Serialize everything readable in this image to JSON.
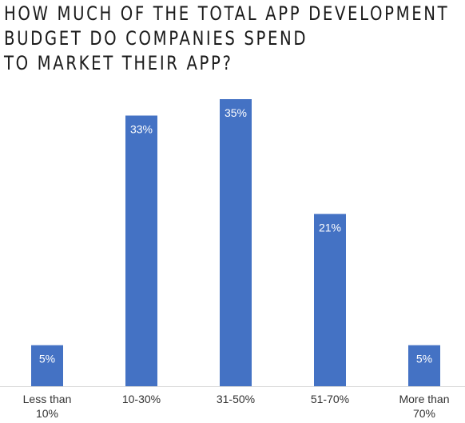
{
  "title_lines": [
    "HOW MUCH OF THE TOTAL APP DEVELOPMENT",
    "BUDGET DO COMPANIES SPEND",
    "TO MARKET THEIR APP?"
  ],
  "colors": {
    "bar": "#4472C4",
    "axis": "#d9d9d9",
    "label_text": "#ffffff",
    "tick_text": "#333333"
  },
  "chart_data": {
    "type": "bar",
    "title": "HOW MUCH OF THE TOTAL APP DEVELOPMENT BUDGET DO COMPANIES SPEND TO MARKET THEIR APP?",
    "categories": [
      "Less than 10%",
      "10-30%",
      "31-50%",
      "51-70%",
      "More than 70%"
    ],
    "category_lines": [
      [
        "Less than",
        "10%"
      ],
      [
        "10-30%"
      ],
      [
        "31-50%"
      ],
      [
        "51-70%"
      ],
      [
        "More than",
        "70%"
      ]
    ],
    "values": [
      5,
      33,
      35,
      21,
      5
    ],
    "value_labels": [
      "5%",
      "33%",
      "35%",
      "21%",
      "5%"
    ],
    "unit": "%",
    "ylim": [
      0,
      35
    ],
    "grid": false,
    "legend": "none"
  }
}
